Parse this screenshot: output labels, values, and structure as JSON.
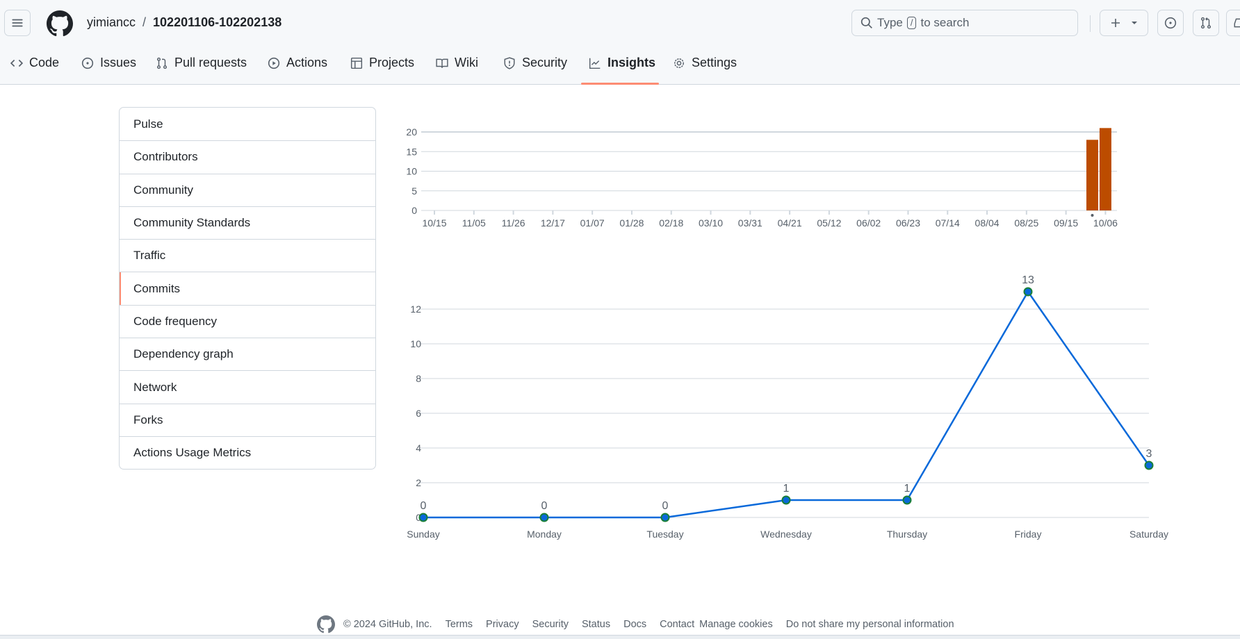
{
  "header": {
    "owner": "yimiancc",
    "separator": "/",
    "repo": "102201106-102202138",
    "search_prefix": "Type",
    "search_key": "/",
    "search_suffix": "to search"
  },
  "tabs": [
    {
      "label": "Code",
      "icon": "code-icon"
    },
    {
      "label": "Issues",
      "icon": "issue-icon"
    },
    {
      "label": "Pull requests",
      "icon": "pull-request-icon"
    },
    {
      "label": "Actions",
      "icon": "play-icon"
    },
    {
      "label": "Projects",
      "icon": "table-icon"
    },
    {
      "label": "Wiki",
      "icon": "book-icon"
    },
    {
      "label": "Security",
      "icon": "shield-icon"
    },
    {
      "label": "Insights",
      "icon": "graph-icon",
      "active": true
    },
    {
      "label": "Settings",
      "icon": "gear-icon"
    }
  ],
  "sidebar": {
    "items": [
      "Pulse",
      "Contributors",
      "Community",
      "Community Standards",
      "Traffic",
      "Commits",
      "Code frequency",
      "Dependency graph",
      "Network",
      "Forks",
      "Actions Usage Metrics"
    ],
    "selected": "Commits"
  },
  "chart_data": [
    {
      "type": "bar",
      "x_tick_labels": [
        "10/15",
        "11/05",
        "11/26",
        "12/17",
        "01/07",
        "01/28",
        "02/18",
        "03/10",
        "03/31",
        "04/21",
        "05/12",
        "06/02",
        "06/23",
        "07/14",
        "08/04",
        "08/25",
        "09/15",
        "10/06"
      ],
      "y_ticks": [
        0,
        5,
        10,
        15,
        20
      ],
      "ylim": [
        0,
        22
      ],
      "weeks": 52,
      "bars": [
        {
          "week": "09/29",
          "value": 18
        },
        {
          "week": "10/06",
          "value": 21
        }
      ],
      "color": "#bc4c00",
      "grid": true
    },
    {
      "type": "line",
      "categories": [
        "Sunday",
        "Monday",
        "Tuesday",
        "Wednesday",
        "Thursday",
        "Friday",
        "Saturday"
      ],
      "values": [
        0,
        0,
        0,
        1,
        1,
        13,
        3
      ],
      "y_ticks": [
        0,
        2,
        4,
        6,
        8,
        10,
        12
      ],
      "ylim": [
        0,
        13
      ],
      "color": "#0969da",
      "point_stroke": "#1a7f37",
      "grid": true
    }
  ],
  "footer": {
    "copyright": "© 2024 GitHub, Inc.",
    "links": [
      "Terms",
      "Privacy",
      "Security",
      "Status",
      "Docs",
      "Contact",
      "Manage cookies",
      "Do not share my personal information"
    ]
  }
}
